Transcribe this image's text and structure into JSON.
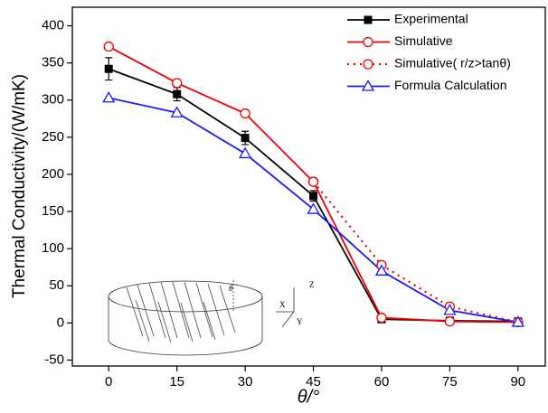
{
  "chart_data": {
    "type": "line",
    "x_label": "θ/°",
    "y_label": "Thermal Conductivity/(W/mK)",
    "x": [
      0,
      15,
      30,
      45,
      60,
      75,
      90
    ],
    "xlim": [
      -8,
      96
    ],
    "xticks": [
      0,
      15,
      30,
      45,
      60,
      75,
      90
    ],
    "ylim": [
      -58,
      425
    ],
    "yticks": [
      -50,
      0,
      50,
      100,
      150,
      200,
      250,
      300,
      350,
      400
    ],
    "legend": "top-right",
    "series": [
      {
        "name": "Experimental",
        "color": "#000000",
        "marker": "square-filled",
        "dash": false,
        "values": [
          342,
          308,
          249,
          171,
          5,
          3,
          2
        ],
        "errors": [
          15,
          9,
          9,
          7,
          2,
          2,
          2
        ]
      },
      {
        "name": "Simulative",
        "color": "#ee0000",
        "marker": "circle-open",
        "dash": false,
        "values": [
          372,
          323,
          282,
          190,
          7,
          2,
          1
        ]
      },
      {
        "name": "Simulative( r/z>tanθ)",
        "color": "#ee0000",
        "marker": "circle-open",
        "dash": true,
        "values": [
          null,
          null,
          null,
          190,
          78,
          22,
          1
        ]
      },
      {
        "name": "Formula Calculation",
        "color": "#1a1aff",
        "marker": "triangle-open",
        "dash": false,
        "values": [
          303,
          283,
          228,
          153,
          70,
          17,
          1
        ]
      }
    ],
    "annotations": [
      "θ",
      "X",
      "Y",
      "Z"
    ]
  }
}
